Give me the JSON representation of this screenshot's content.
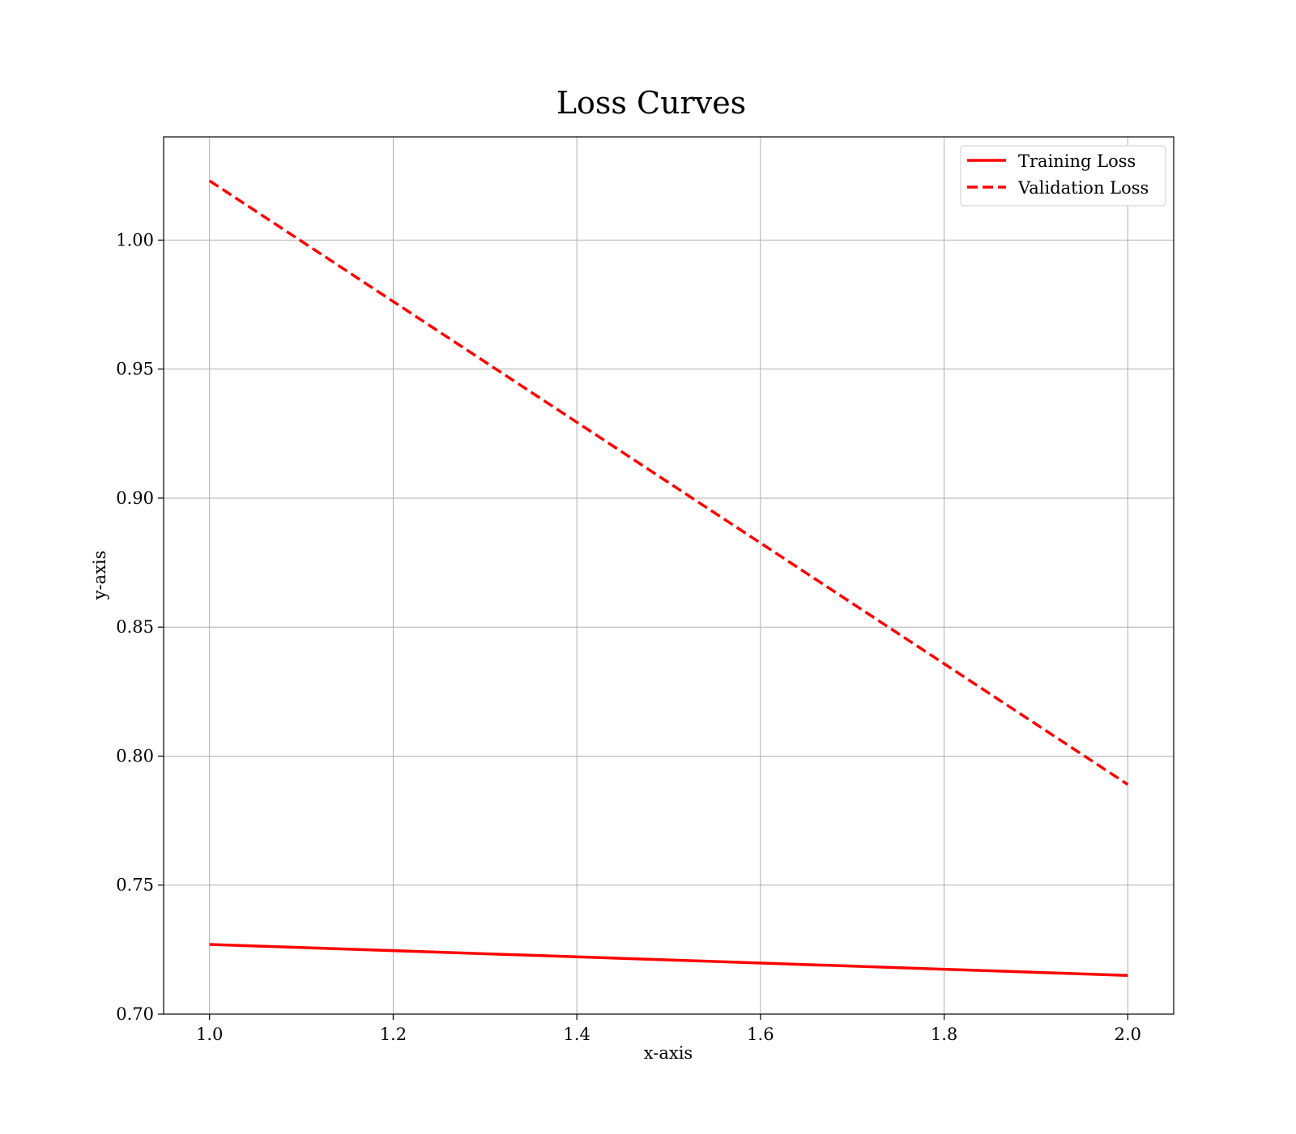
{
  "chart_data": {
    "type": "line",
    "title": "Loss Curves",
    "xlabel": "x-axis",
    "ylabel": "y-axis",
    "xlim": [
      0.95,
      2.05
    ],
    "ylim": [
      0.7,
      1.04
    ],
    "xticks": [
      1.0,
      1.2,
      1.4,
      1.6,
      1.8,
      2.0
    ],
    "xtick_labels": [
      "1.0",
      "1.2",
      "1.4",
      "1.6",
      "1.8",
      "2.0"
    ],
    "yticks": [
      0.7,
      0.75,
      0.8,
      0.85,
      0.9,
      0.95,
      1.0
    ],
    "ytick_labels": [
      "0.70",
      "0.75",
      "0.80",
      "0.85",
      "0.90",
      "0.95",
      "1.00"
    ],
    "grid": true,
    "legend_position": "top-right",
    "series": [
      {
        "name": "Training Loss",
        "x": [
          1.0,
          2.0
        ],
        "y": [
          0.727,
          0.715
        ],
        "color": "#ff0000",
        "style": "solid"
      },
      {
        "name": "Validation Loss",
        "x": [
          1.0,
          2.0
        ],
        "y": [
          1.023,
          0.789
        ],
        "color": "#ff0000",
        "style": "dashed"
      }
    ]
  }
}
